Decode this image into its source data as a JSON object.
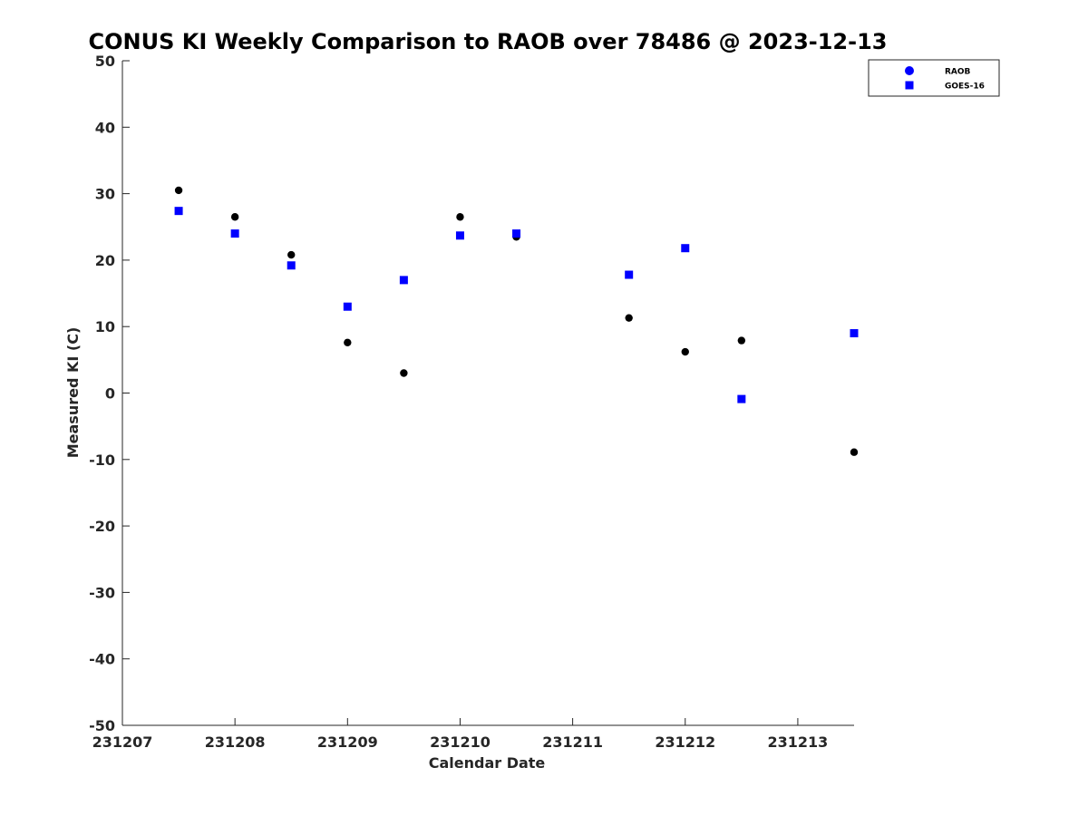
{
  "chart_data": {
    "type": "scatter",
    "title": "CONUS KI Weekly Comparison to RAOB over 78486 @ 2023-12-13",
    "xlabel": "Calendar Date",
    "ylabel": "Measured KI (C)",
    "xlim": [
      "2023-12-07",
      "2023-12-13 12:00"
    ],
    "ylim": [
      -50,
      50
    ],
    "x_ticks": [
      "231207",
      "231208",
      "231209",
      "231210",
      "231211",
      "231212",
      "231213"
    ],
    "y_ticks": [
      -50,
      -40,
      -30,
      -20,
      -10,
      0,
      10,
      20,
      30,
      40,
      50
    ],
    "grid": false,
    "legend_position": "top-right",
    "series": [
      {
        "name": "RAOB",
        "marker": "circle",
        "color": "#000000",
        "legend_color": "#0000ff",
        "points": [
          {
            "x": "2023-12-07 12:00",
            "y": 30.5
          },
          {
            "x": "2023-12-08 00:00",
            "y": 26.5
          },
          {
            "x": "2023-12-08 12:00",
            "y": 20.8
          },
          {
            "x": "2023-12-09 00:00",
            "y": 7.6
          },
          {
            "x": "2023-12-09 12:00",
            "y": 3.0
          },
          {
            "x": "2023-12-10 00:00",
            "y": 26.5
          },
          {
            "x": "2023-12-10 12:00",
            "y": 23.5
          },
          {
            "x": "2023-12-11 12:00",
            "y": 11.3
          },
          {
            "x": "2023-12-12 00:00",
            "y": 6.2
          },
          {
            "x": "2023-12-12 12:00",
            "y": 7.9
          },
          {
            "x": "2023-12-13 12:00",
            "y": -8.9
          }
        ]
      },
      {
        "name": "GOES-16",
        "marker": "square",
        "color": "#0000ff",
        "legend_color": "#0000ff",
        "points": [
          {
            "x": "2023-12-07 12:00",
            "y": 27.4
          },
          {
            "x": "2023-12-08 00:00",
            "y": 24.0
          },
          {
            "x": "2023-12-08 12:00",
            "y": 19.2
          },
          {
            "x": "2023-12-09 00:00",
            "y": 13.0
          },
          {
            "x": "2023-12-09 12:00",
            "y": 17.0
          },
          {
            "x": "2023-12-10 00:00",
            "y": 23.7
          },
          {
            "x": "2023-12-10 12:00",
            "y": 24.0
          },
          {
            "x": "2023-12-11 12:00",
            "y": 17.8
          },
          {
            "x": "2023-12-12 00:00",
            "y": 21.8
          },
          {
            "x": "2023-12-12 12:00",
            "y": -0.9
          },
          {
            "x": "2023-12-13 12:00",
            "y": 9.0
          }
        ]
      }
    ]
  }
}
